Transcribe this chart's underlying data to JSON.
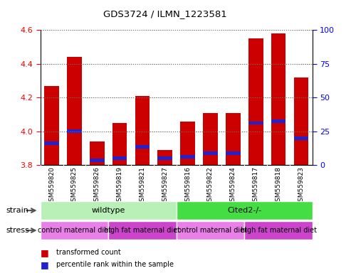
{
  "title": "GDS3724 / ILMN_1223581",
  "samples": [
    "GSM559820",
    "GSM559825",
    "GSM559826",
    "GSM559819",
    "GSM559821",
    "GSM559827",
    "GSM559816",
    "GSM559822",
    "GSM559824",
    "GSM559817",
    "GSM559818",
    "GSM559823"
  ],
  "red_values": [
    4.27,
    4.44,
    3.94,
    4.05,
    4.21,
    3.89,
    4.06,
    4.11,
    4.11,
    4.55,
    4.58,
    4.32
  ],
  "blue_bottoms": [
    3.92,
    3.99,
    3.82,
    3.83,
    3.9,
    3.83,
    3.84,
    3.86,
    3.86,
    4.04,
    4.05,
    3.95
  ],
  "blue_tops": [
    3.94,
    4.01,
    3.84,
    3.85,
    3.92,
    3.85,
    3.86,
    3.88,
    3.88,
    4.06,
    4.07,
    3.97
  ],
  "ylim_left": [
    3.8,
    4.6
  ],
  "ylim_right": [
    0,
    100
  ],
  "yticks_left": [
    3.8,
    4.0,
    4.2,
    4.4,
    4.6
  ],
  "yticks_right": [
    0,
    25,
    50,
    75,
    100
  ],
  "bar_color": "#cc0000",
  "blue_color": "#2222cc",
  "strain_groups": [
    {
      "label": "wildtype",
      "start": 0,
      "end": 6,
      "color": "#b8f0b8"
    },
    {
      "label": "Cited2-/-",
      "start": 6,
      "end": 12,
      "color": "#44dd44"
    }
  ],
  "stress_groups": [
    {
      "label": "control maternal diet",
      "start": 0,
      "end": 3,
      "color": "#e880e8"
    },
    {
      "label": "high fat maternal diet",
      "start": 3,
      "end": 6,
      "color": "#cc44cc"
    },
    {
      "label": "control maternal diet",
      "start": 6,
      "end": 9,
      "color": "#e880e8"
    },
    {
      "label": "high fat maternal diet",
      "start": 9,
      "end": 12,
      "color": "#cc44cc"
    }
  ],
  "legend_red": "transformed count",
  "legend_blue": "percentile rank within the sample",
  "strain_label": "strain",
  "stress_label": "stress",
  "bar_width": 0.65,
  "grid_color": "#777777",
  "axis_bg": "#ffffff",
  "xlab_bg": "#cccccc"
}
